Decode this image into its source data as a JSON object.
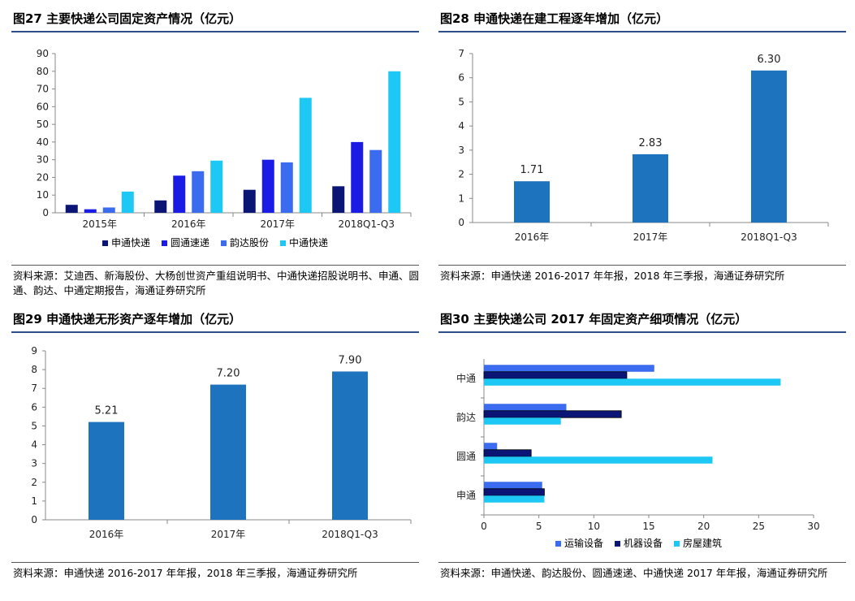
{
  "colors": {
    "blue_main": "#1d73be",
    "navy": "#0b1576",
    "blue": "#1a1ce6",
    "medium": "#3b6bee",
    "cyan": "#1ec8f4",
    "rule": "#2b4f86"
  },
  "fig27": {
    "title": "图27  主要快递公司固定资产情况（亿元）",
    "source": "资料来源：艾迪西、新海股份、大杨创世资产重组说明书、中通快递招股说明书、申通、圆通、韵达、中通定期报告，海通证券研究所",
    "chart_data": {
      "type": "bar",
      "categories": [
        "2015年",
        "2016年",
        "2017年",
        "2018Q1-Q3"
      ],
      "series": [
        {
          "name": "申通快递",
          "values": [
            4.5,
            7,
            13,
            15
          ]
        },
        {
          "name": "圆通速递",
          "values": [
            2,
            21,
            30,
            40
          ]
        },
        {
          "name": "韵达股份",
          "values": [
            3,
            23.5,
            28.5,
            35.5
          ]
        },
        {
          "name": "中通快递",
          "values": [
            12,
            29.5,
            65,
            80
          ]
        }
      ],
      "ylim": [
        0,
        90
      ],
      "yticks": [
        0,
        10,
        20,
        30,
        40,
        50,
        60,
        70,
        80,
        90
      ],
      "legend": "bottom"
    }
  },
  "fig28": {
    "title": "图28  申通快递在建工程逐年增加（亿元）",
    "source": "资料来源：申通快递 2016-2017 年年报，2018 年三季报，海通证券研究所",
    "chart_data": {
      "type": "bar",
      "categories": [
        "2016年",
        "2017年",
        "2018Q1-Q3"
      ],
      "values": [
        1.71,
        2.83,
        6.3
      ],
      "value_labels": [
        "1.71",
        "2.83",
        "6.30"
      ],
      "ylim": [
        0,
        7
      ],
      "yticks": [
        0,
        1,
        2,
        3,
        4,
        5,
        6,
        7
      ]
    }
  },
  "fig29": {
    "title": "图29 申通快递无形资产逐年增加（亿元）",
    "source": "资料来源：申通快递 2016-2017 年年报，2018 年三季报，海通证券研究所",
    "chart_data": {
      "type": "bar",
      "categories": [
        "2016年",
        "2017年",
        "2018Q1-Q3"
      ],
      "values": [
        5.21,
        7.2,
        7.9
      ],
      "value_labels": [
        "5.21",
        "7.20",
        "7.90"
      ],
      "ylim": [
        0,
        9
      ],
      "yticks": [
        0,
        1,
        2,
        3,
        4,
        5,
        6,
        7,
        8,
        9
      ]
    }
  },
  "fig30": {
    "title": "图30  主要快递公司 2017 年固定资产细项情况（亿元）",
    "source": "资料来源：申通快递、韵达股份、圆通速递、中通快递 2017 年年报，海通证券研究所",
    "chart_data": {
      "type": "bar",
      "orientation": "horizontal",
      "categories": [
        "中通",
        "韵达",
        "圆通",
        "申通"
      ],
      "series": [
        {
          "name": "运输设备",
          "values": [
            15.5,
            7.5,
            1.2,
            5.3
          ]
        },
        {
          "name": "机器设备",
          "values": [
            13,
            12.5,
            4.3,
            5.5
          ]
        },
        {
          "name": "房屋建筑",
          "values": [
            27,
            7,
            20.8,
            5.5
          ]
        }
      ],
      "xlim": [
        0,
        30
      ],
      "xticks": [
        0,
        5,
        10,
        15,
        20,
        25,
        30
      ],
      "legend": "bottom"
    }
  }
}
